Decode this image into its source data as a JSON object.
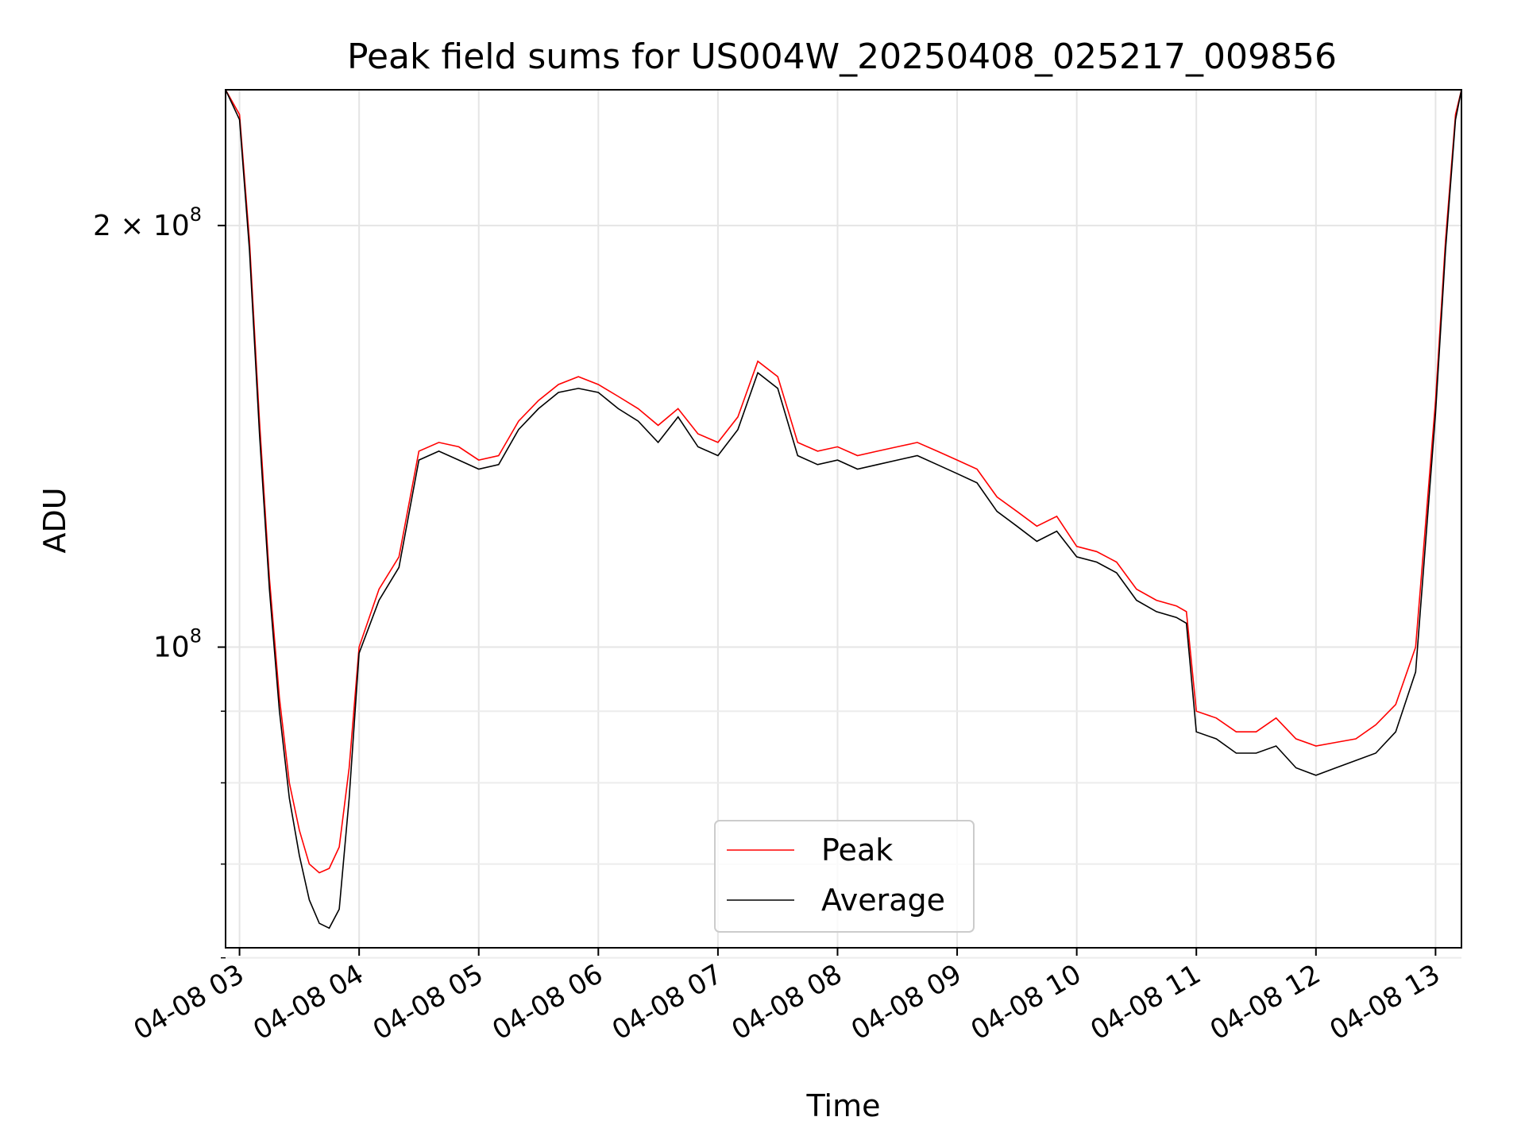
{
  "chart_data": {
    "type": "line",
    "title": "Peak field sums for US004W_20250408_025217_009856",
    "xlabel": "Time",
    "ylabel": "ADU",
    "y_scale": "log",
    "grid": true,
    "legend_position": "lower-center",
    "x_range": [
      "04-08 02:53",
      "04-08 13:13"
    ],
    "y_range": [
      61000000,
      250000000
    ],
    "x_ticks": [
      "04-08 03",
      "04-08 04",
      "04-08 05",
      "04-08 06",
      "04-08 07",
      "04-08 08",
      "04-08 09",
      "04-08 10",
      "04-08 11",
      "04-08 12",
      "04-08 13"
    ],
    "y_ticks": [
      {
        "value": 200000000,
        "label_base": "2 × 10",
        "label_exp": "8"
      },
      {
        "value": 100000000,
        "label_base": "10",
        "label_exp": "8"
      }
    ],
    "y_minor_ticks": [
      60000000,
      70000000,
      80000000,
      90000000
    ],
    "series": [
      {
        "name": "Peak",
        "color": "#ff0000",
        "x": [
          "04-08 02:53",
          "04-08 03:00",
          "04-08 03:05",
          "04-08 03:10",
          "04-08 03:15",
          "04-08 03:20",
          "04-08 03:25",
          "04-08 03:30",
          "04-08 03:35",
          "04-08 03:40",
          "04-08 03:45",
          "04-08 03:50",
          "04-08 03:55",
          "04-08 04:00",
          "04-08 04:10",
          "04-08 04:20",
          "04-08 04:30",
          "04-08 04:40",
          "04-08 04:50",
          "04-08 05:00",
          "04-08 05:10",
          "04-08 05:20",
          "04-08 05:30",
          "04-08 05:40",
          "04-08 05:50",
          "04-08 06:00",
          "04-08 06:10",
          "04-08 06:20",
          "04-08 06:30",
          "04-08 06:40",
          "04-08 06:50",
          "04-08 07:00",
          "04-08 07:10",
          "04-08 07:20",
          "04-08 07:30",
          "04-08 07:40",
          "04-08 07:50",
          "04-08 08:00",
          "04-08 08:10",
          "04-08 08:20",
          "04-08 08:30",
          "04-08 08:40",
          "04-08 08:50",
          "04-08 09:00",
          "04-08 09:10",
          "04-08 09:20",
          "04-08 09:30",
          "04-08 09:40",
          "04-08 09:50",
          "04-08 10:00",
          "04-08 10:10",
          "04-08 10:20",
          "04-08 10:30",
          "04-08 10:40",
          "04-08 10:50",
          "04-08 10:55",
          "04-08 11:00",
          "04-08 11:10",
          "04-08 11:20",
          "04-08 11:30",
          "04-08 11:40",
          "04-08 11:50",
          "04-08 12:00",
          "04-08 12:10",
          "04-08 12:20",
          "04-08 12:30",
          "04-08 12:40",
          "04-08 12:50",
          "04-08 13:00",
          "04-08 13:05",
          "04-08 13:10",
          "04-08 13:13"
        ],
        "values": [
          250000000,
          240000000,
          195000000,
          145000000,
          112000000,
          92000000,
          80000000,
          74000000,
          70000000,
          69000000,
          69500000,
          72000000,
          82000000,
          100000000,
          110000000,
          116000000,
          138000000,
          140000000,
          139000000,
          136000000,
          137000000,
          145000000,
          150000000,
          154000000,
          156000000,
          154000000,
          151000000,
          148000000,
          144000000,
          148000000,
          142000000,
          140000000,
          146000000,
          160000000,
          156000000,
          140000000,
          138000000,
          139000000,
          137000000,
          138000000,
          139000000,
          140000000,
          138000000,
          136000000,
          134000000,
          128000000,
          125000000,
          122000000,
          124000000,
          118000000,
          117000000,
          115000000,
          110000000,
          108000000,
          107000000,
          106000000,
          90000000,
          89000000,
          87000000,
          87000000,
          89000000,
          86000000,
          85000000,
          85500000,
          86000000,
          88000000,
          91000000,
          100000000,
          150000000,
          195000000,
          240000000,
          250000000
        ]
      },
      {
        "name": "Average",
        "color": "#000000",
        "x": [
          "04-08 02:53",
          "04-08 03:00",
          "04-08 03:05",
          "04-08 03:10",
          "04-08 03:15",
          "04-08 03:20",
          "04-08 03:25",
          "04-08 03:30",
          "04-08 03:35",
          "04-08 03:40",
          "04-08 03:45",
          "04-08 03:50",
          "04-08 03:55",
          "04-08 04:00",
          "04-08 04:10",
          "04-08 04:20",
          "04-08 04:30",
          "04-08 04:40",
          "04-08 04:50",
          "04-08 05:00",
          "04-08 05:10",
          "04-08 05:20",
          "04-08 05:30",
          "04-08 05:40",
          "04-08 05:50",
          "04-08 06:00",
          "04-08 06:10",
          "04-08 06:20",
          "04-08 06:30",
          "04-08 06:40",
          "04-08 06:50",
          "04-08 07:00",
          "04-08 07:10",
          "04-08 07:20",
          "04-08 07:30",
          "04-08 07:40",
          "04-08 07:50",
          "04-08 08:00",
          "04-08 08:10",
          "04-08 08:20",
          "04-08 08:30",
          "04-08 08:40",
          "04-08 08:50",
          "04-08 09:00",
          "04-08 09:10",
          "04-08 09:20",
          "04-08 09:30",
          "04-08 09:40",
          "04-08 09:50",
          "04-08 10:00",
          "04-08 10:10",
          "04-08 10:20",
          "04-08 10:30",
          "04-08 10:40",
          "04-08 10:50",
          "04-08 10:55",
          "04-08 11:00",
          "04-08 11:10",
          "04-08 11:20",
          "04-08 11:30",
          "04-08 11:40",
          "04-08 11:50",
          "04-08 12:00",
          "04-08 12:10",
          "04-08 12:20",
          "04-08 12:30",
          "04-08 12:40",
          "04-08 12:50",
          "04-08 13:00",
          "04-08 13:05",
          "04-08 13:10",
          "04-08 13:13"
        ],
        "values": [
          250000000,
          238000000,
          192000000,
          142000000,
          110000000,
          90000000,
          78000000,
          71000000,
          66000000,
          63500000,
          63000000,
          65000000,
          78000000,
          99000000,
          108000000,
          114000000,
          136000000,
          138000000,
          136000000,
          134000000,
          135000000,
          143000000,
          148000000,
          152000000,
          153000000,
          152000000,
          148000000,
          145000000,
          140000000,
          146000000,
          139000000,
          137000000,
          143000000,
          157000000,
          153000000,
          137000000,
          135000000,
          136000000,
          134000000,
          135000000,
          136000000,
          137000000,
          135000000,
          133000000,
          131000000,
          125000000,
          122000000,
          119000000,
          121000000,
          116000000,
          115000000,
          113000000,
          108000000,
          106000000,
          105000000,
          104000000,
          87000000,
          86000000,
          84000000,
          84000000,
          85000000,
          82000000,
          81000000,
          82000000,
          83000000,
          84000000,
          87000000,
          96000000,
          147000000,
          192000000,
          238000000,
          250000000
        ]
      }
    ]
  }
}
